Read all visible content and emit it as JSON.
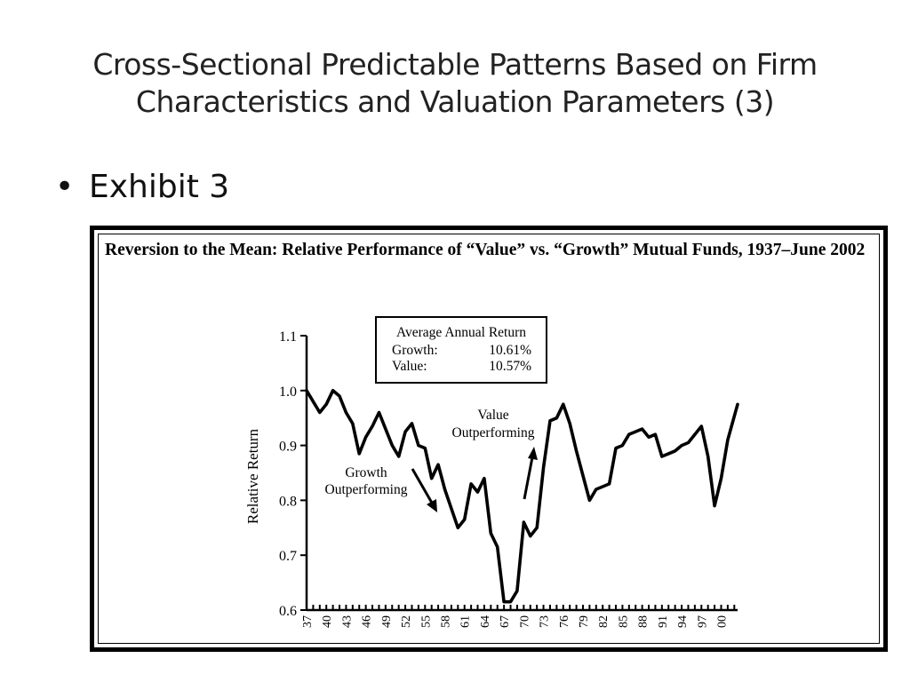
{
  "slide": {
    "title_line1": "Cross-Sectional Predictable Patterns Based on Firm",
    "title_line2": "Characteristics and Valuation Parameters (3)",
    "bullet_symbol": "•",
    "bullet_text": "Exhibit 3"
  },
  "chart_data": {
    "type": "line",
    "title": "Reversion to the Mean: Relative Performance of “Value” vs. “Growth” Mutual Funds, 1937–June 2002",
    "ylabel": "Relative Return",
    "xlabel": "",
    "ylim": [
      0.6,
      1.1
    ],
    "xlim": [
      1937,
      2002.5
    ],
    "yticks": [
      "0.6",
      "0.7",
      "0.8",
      "0.9",
      "1.0",
      "1.1"
    ],
    "xticks": [
      "37",
      "40",
      "43",
      "46",
      "49",
      "52",
      "55",
      "58",
      "61",
      "64",
      "67",
      "70",
      "73",
      "76",
      "79",
      "82",
      "85",
      "88",
      "91",
      "94",
      "97",
      "00"
    ],
    "legend_box": {
      "heading": "Average Annual Return",
      "rows": [
        {
          "label": "Growth:",
          "value": "10.61%"
        },
        {
          "label": "Value:",
          "value": "10.57%"
        }
      ]
    },
    "annotations": [
      {
        "line1": "Growth",
        "line2": "Outperforming"
      },
      {
        "line1": "Value",
        "line2": "Outperforming"
      }
    ],
    "series": [
      {
        "color": "#000000",
        "x": [
          1937,
          1938,
          1939,
          1940,
          1941,
          1942,
          1943,
          1944,
          1945,
          1946,
          1947,
          1948,
          1949,
          1950,
          1951,
          1952,
          1953,
          1954,
          1955,
          1956,
          1957,
          1958,
          1959,
          1960,
          1961,
          1962,
          1963,
          1964,
          1965,
          1966,
          1967,
          1968,
          1969,
          1970,
          1971,
          1972,
          1973,
          1974,
          1975,
          1976,
          1977,
          1978,
          1979,
          1980,
          1981,
          1982,
          1983,
          1984,
          1985,
          1986,
          1987,
          1988,
          1989,
          1990,
          1991,
          1992,
          1993,
          1994,
          1995,
          1996,
          1997,
          1998,
          1999,
          2000,
          2001,
          2002.5
        ],
        "y": [
          1.0,
          0.98,
          0.96,
          0.975,
          1.0,
          0.99,
          0.96,
          0.94,
          0.885,
          0.915,
          0.935,
          0.96,
          0.93,
          0.9,
          0.88,
          0.925,
          0.94,
          0.9,
          0.895,
          0.84,
          0.865,
          0.82,
          0.785,
          0.75,
          0.765,
          0.83,
          0.815,
          0.84,
          0.74,
          0.715,
          0.615,
          0.615,
          0.635,
          0.76,
          0.735,
          0.75,
          0.86,
          0.945,
          0.95,
          0.975,
          0.94,
          0.89,
          0.845,
          0.8,
          0.82,
          0.825,
          0.83,
          0.895,
          0.9,
          0.92,
          0.925,
          0.93,
          0.915,
          0.92,
          0.88,
          0.885,
          0.89,
          0.9,
          0.905,
          0.92,
          0.935,
          0.88,
          0.79,
          0.84,
          0.91,
          0.975
        ]
      }
    ],
    "grid": false,
    "legend_position": "top-center"
  }
}
